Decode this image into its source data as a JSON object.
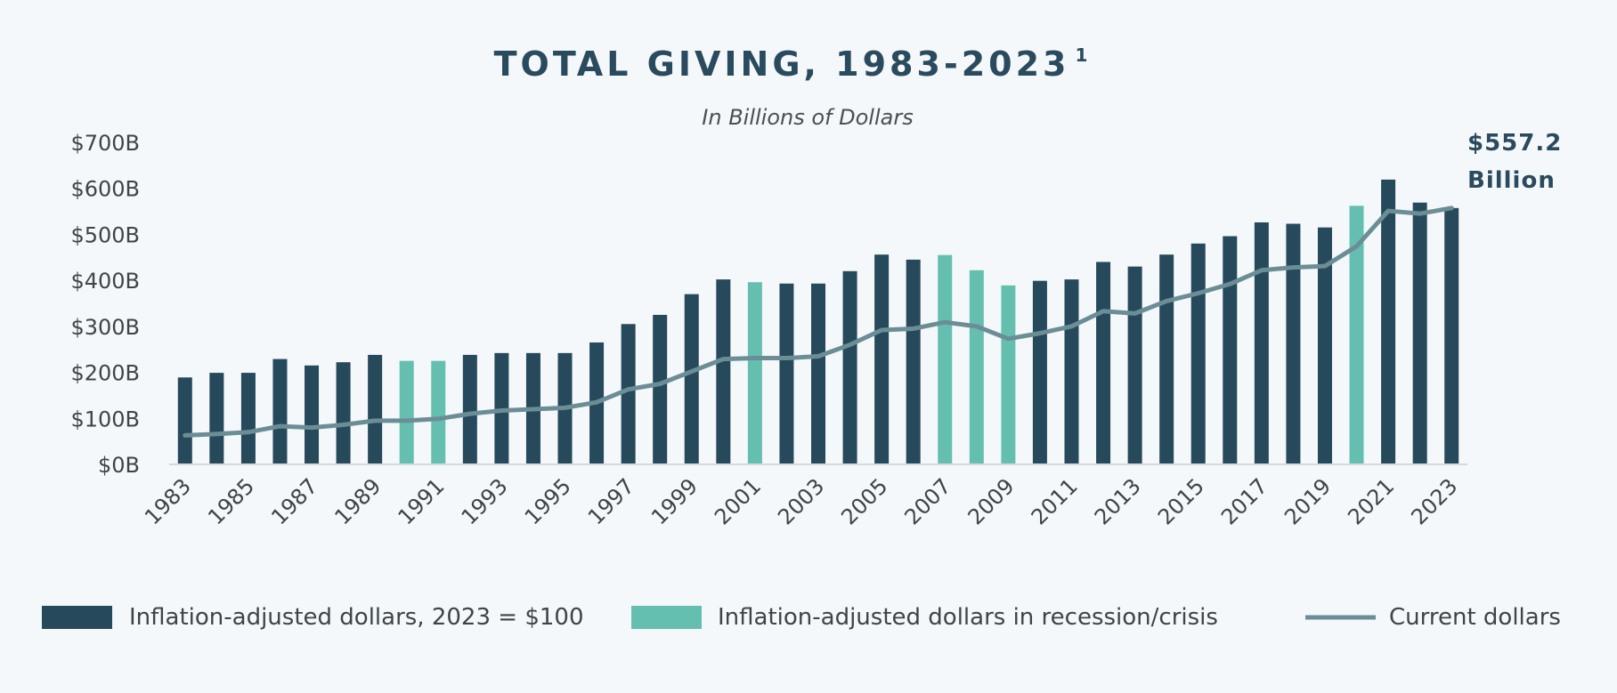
{
  "chart_data": {
    "type": "bar",
    "title": "TOTAL GIVING, 1983-2023",
    "title_superscript": "1",
    "subtitle": "In Billions of Dollars",
    "annotation": [
      "$557.2",
      "Billion"
    ],
    "ylim": [
      0,
      700
    ],
    "y_ticks": [
      "$0B",
      "$100B",
      "$200B",
      "$300B",
      "$400B",
      "$500B",
      "$600B",
      "$700B"
    ],
    "y_tick_values": [
      0,
      100,
      200,
      300,
      400,
      500,
      600,
      700
    ],
    "x_tick_labels": [
      "1983",
      "1985",
      "1987",
      "1989",
      "1991",
      "1993",
      "1995",
      "1997",
      "1999",
      "2001",
      "2003",
      "2005",
      "2007",
      "2009",
      "2011",
      "2013",
      "2015",
      "2017",
      "2019",
      "2021",
      "2023"
    ],
    "grid": false,
    "legend_position": "bottom",
    "categories": [
      1983,
      1984,
      1985,
      1986,
      1987,
      1988,
      1989,
      1990,
      1991,
      1992,
      1993,
      1994,
      1995,
      1996,
      1997,
      1998,
      1999,
      2000,
      2001,
      2002,
      2003,
      2004,
      2005,
      2006,
      2007,
      2008,
      2009,
      2010,
      2011,
      2012,
      2013,
      2014,
      2015,
      2016,
      2017,
      2018,
      2019,
      2020,
      2021,
      2022,
      2023
    ],
    "series": [
      {
        "name": "Inflation-adjusted dollars, 2023 = $100",
        "kind": "bar",
        "color": "#27495c",
        "values": [
          189,
          199,
          199,
          229,
          215,
          222,
          238,
          225,
          225,
          238,
          242,
          242,
          242,
          265,
          305,
          325,
          370,
          402,
          396,
          393,
          393,
          420,
          456,
          445,
          455,
          422,
          389,
          399,
          402,
          440,
          430,
          456,
          480,
          496,
          526,
          523,
          515,
          562,
          619,
          569,
          557.2
        ]
      },
      {
        "name": "Inflation-adjusted dollars in recession/crisis",
        "kind": "bar-highlight",
        "color": "#64bfb0",
        "years": [
          1990,
          1991,
          2001,
          2007,
          2008,
          2009,
          2020
        ]
      },
      {
        "name": "Current dollars",
        "kind": "line",
        "color": "#6b8e96",
        "values": [
          63,
          66,
          70,
          83,
          80,
          86,
          95,
          95,
          99,
          110,
          117,
          120,
          123,
          135,
          163,
          175,
          202,
          229,
          231,
          231,
          235,
          260,
          292,
          295,
          309,
          300,
          273,
          285,
          300,
          333,
          328,
          355,
          372,
          392,
          422,
          428,
          431,
          474,
          551,
          545,
          557.2
        ]
      }
    ]
  }
}
